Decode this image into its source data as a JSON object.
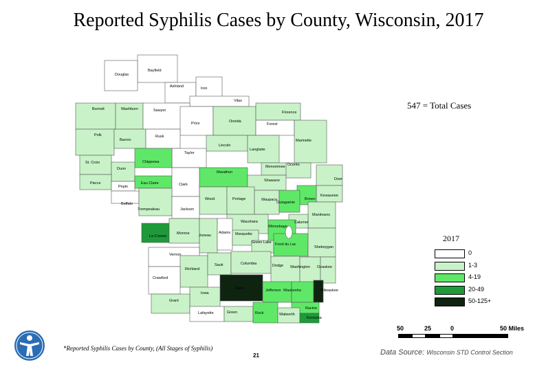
{
  "title": "Reported Syphilis Cases by County, Wisconsin, 2017",
  "total_cases_label": "547 = Total Cases",
  "colors": {
    "zero": "#ffffff",
    "c1_3": "#c9f2c9",
    "c4_19": "#5fe868",
    "c20_49": "#1e9a3a",
    "c50_plus": "#0e2410",
    "outline": "#555555",
    "lake": "#ffffff"
  },
  "legend": {
    "title": "2017",
    "items": [
      {
        "label": "0",
        "color": "#ffffff"
      },
      {
        "label": "1-3",
        "color": "#c9f2c9"
      },
      {
        "label": "4-19",
        "color": "#5fe868"
      },
      {
        "label": "20-49",
        "color": "#1e9a3a"
      },
      {
        "label": "50-125+",
        "color": "#0e2410"
      }
    ]
  },
  "counties": [
    {
      "name": "Bayfield",
      "category": "0"
    },
    {
      "name": "Douglas",
      "category": "0"
    },
    {
      "name": "Ashland",
      "category": "0"
    },
    {
      "name": "Iron",
      "category": "0"
    },
    {
      "name": "Vilas",
      "category": "0"
    },
    {
      "name": "Burnett",
      "category": "1-3"
    },
    {
      "name": "Washburn",
      "category": "1-3"
    },
    {
      "name": "Sawyer",
      "category": "0"
    },
    {
      "name": "Price",
      "category": "0"
    },
    {
      "name": "Oneida",
      "category": "1-3"
    },
    {
      "name": "Florence",
      "category": "1-3"
    },
    {
      "name": "Forest",
      "category": "0"
    },
    {
      "name": "Polk",
      "category": "1-3"
    },
    {
      "name": "Barron",
      "category": "1-3"
    },
    {
      "name": "Rusk",
      "category": "0"
    },
    {
      "name": "Marinette",
      "category": "1-3"
    },
    {
      "name": "Lincoln",
      "category": "1-3"
    },
    {
      "name": "Langlade",
      "category": "1-3"
    },
    {
      "name": "Taylor",
      "category": "0"
    },
    {
      "name": "St. Croix",
      "category": "1-3"
    },
    {
      "name": "Chippewa",
      "category": "4-19"
    },
    {
      "name": "Dunn",
      "category": "1-3"
    },
    {
      "name": "Menominee",
      "category": "1-3"
    },
    {
      "name": "Oconto",
      "category": "1-3"
    },
    {
      "name": "Marathon",
      "category": "4-19"
    },
    {
      "name": "Shawano",
      "category": "1-3"
    },
    {
      "name": "Door",
      "category": "1-3"
    },
    {
      "name": "Pierce",
      "category": "1-3"
    },
    {
      "name": "Eau Claire",
      "category": "4-19"
    },
    {
      "name": "Clark",
      "category": "0"
    },
    {
      "name": "Pepin",
      "category": "0"
    },
    {
      "name": "Kewaunee",
      "category": "1-3"
    },
    {
      "name": "Brown",
      "category": "4-19"
    },
    {
      "name": "Wood",
      "category": "1-3"
    },
    {
      "name": "Portage",
      "category": "1-3"
    },
    {
      "name": "Waupaca",
      "category": "1-3"
    },
    {
      "name": "Outagamie",
      "category": "4-19"
    },
    {
      "name": "Buffalo",
      "category": "0"
    },
    {
      "name": "Trempealeau",
      "category": "1-3"
    },
    {
      "name": "Jackson",
      "category": "0"
    },
    {
      "name": "Manitowoc",
      "category": "1-3"
    },
    {
      "name": "Waushara",
      "category": "1-3"
    },
    {
      "name": "Calumet",
      "category": "1-3"
    },
    {
      "name": "Winnebago",
      "category": "4-19"
    },
    {
      "name": "La Crosse",
      "category": "20-49"
    },
    {
      "name": "Monroe",
      "category": "1-3"
    },
    {
      "name": "Juneau",
      "category": "1-3"
    },
    {
      "name": "Adams",
      "category": "0"
    },
    {
      "name": "Marquette",
      "category": "1-3"
    },
    {
      "name": "Green Lake",
      "category": "1-3"
    },
    {
      "name": "Fond du Lac",
      "category": "4-19"
    },
    {
      "name": "Sheboygan",
      "category": "1-3"
    },
    {
      "name": "Vernon",
      "category": "0"
    },
    {
      "name": "Richland",
      "category": "1-3"
    },
    {
      "name": "Sauk",
      "category": "1-3"
    },
    {
      "name": "Columbia",
      "category": "1-3"
    },
    {
      "name": "Dodge",
      "category": "1-3"
    },
    {
      "name": "Washington",
      "category": "1-3"
    },
    {
      "name": "Ozaukee",
      "category": "1-3"
    },
    {
      "name": "Crawford",
      "category": "0"
    },
    {
      "name": "Dane",
      "category": "50-125+"
    },
    {
      "name": "Iowa",
      "category": "1-3"
    },
    {
      "name": "Jefferson",
      "category": "4-19"
    },
    {
      "name": "Waukesha",
      "category": "4-19"
    },
    {
      "name": "Milwaukee",
      "category": "50-125+"
    },
    {
      "name": "Grant",
      "category": "1-3"
    },
    {
      "name": "Racine",
      "category": "4-19"
    },
    {
      "name": "Lafayette",
      "category": "0"
    },
    {
      "name": "Green",
      "category": "1-3"
    },
    {
      "name": "Rock",
      "category": "4-19"
    },
    {
      "name": "Walworth",
      "category": "1-3"
    },
    {
      "name": "Kenosha",
      "category": "20-49"
    }
  ],
  "scale": {
    "ticks": [
      "50",
      "25",
      "0",
      "50 Miles"
    ]
  },
  "footnote": "*Reported Syphilis Cases by County, (All Stages of Syphilis)",
  "page_number": "21",
  "source_prefix": "Data Source:",
  "source_text": "Wisconsin STD Control Section"
}
